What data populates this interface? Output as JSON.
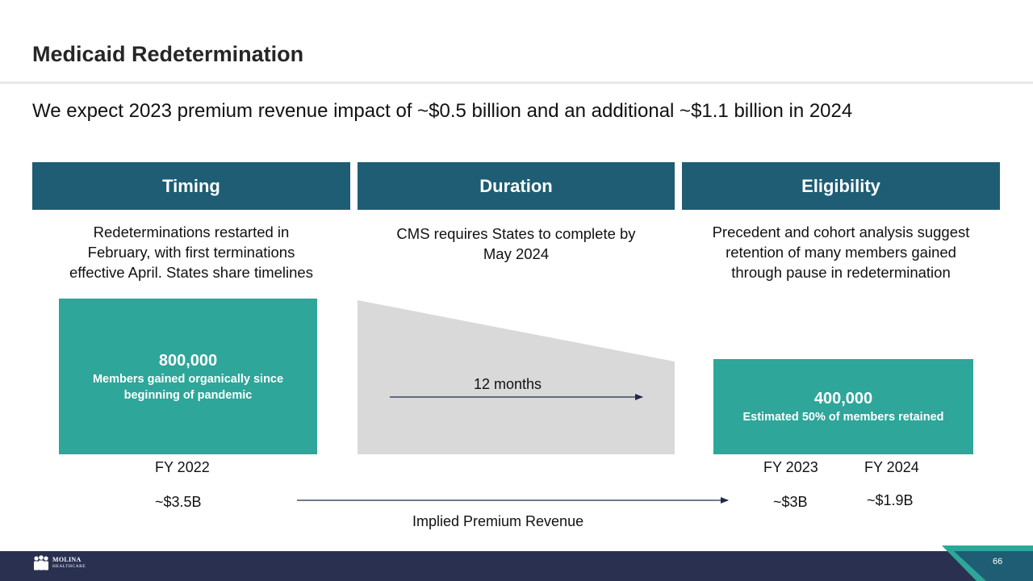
{
  "header": {
    "title": "Medicaid Redetermination",
    "subtitle": "We expect 2023 premium revenue impact of ~$0.5 billion and an additional ~$1.1 billion in 2024"
  },
  "columns": [
    {
      "heading": "Timing",
      "lines": [
        "Redeterminations restarted in",
        "February, with first terminations",
        "effective April. States share timelines"
      ]
    },
    {
      "heading": "Duration",
      "lines": [
        "CMS requires States to complete by",
        "May 2024"
      ]
    },
    {
      "heading": "Eligibility",
      "lines": [
        "Precedent and cohort analysis suggest",
        "retention of many members gained",
        "through pause in redetermination"
      ]
    }
  ],
  "members_gained": {
    "value": "800,000",
    "desc_lines": [
      "Members gained organically since",
      "beginning of pandemic"
    ]
  },
  "members_retained": {
    "value": "400,000",
    "desc": "Estimated 50% of members retained"
  },
  "duration_label": "12 months",
  "fiscal": {
    "fy2022": {
      "label": "FY 2022",
      "revenue": "~$3.5B"
    },
    "fy2023": {
      "label": "FY 2023",
      "revenue": "~$3B"
    },
    "fy2024": {
      "label": "FY 2024",
      "revenue": "~$1.9B"
    }
  },
  "implied_label": "Implied Premium Revenue",
  "footer": {
    "logo_line1": "MOLINA",
    "logo_line2": "HEALTHCARE",
    "page_number": "66"
  },
  "colors": {
    "header_bar": "#1e5d74",
    "teal": "#2ea69a",
    "footer": "#2a3150",
    "arrow": "#1f2a4a"
  }
}
